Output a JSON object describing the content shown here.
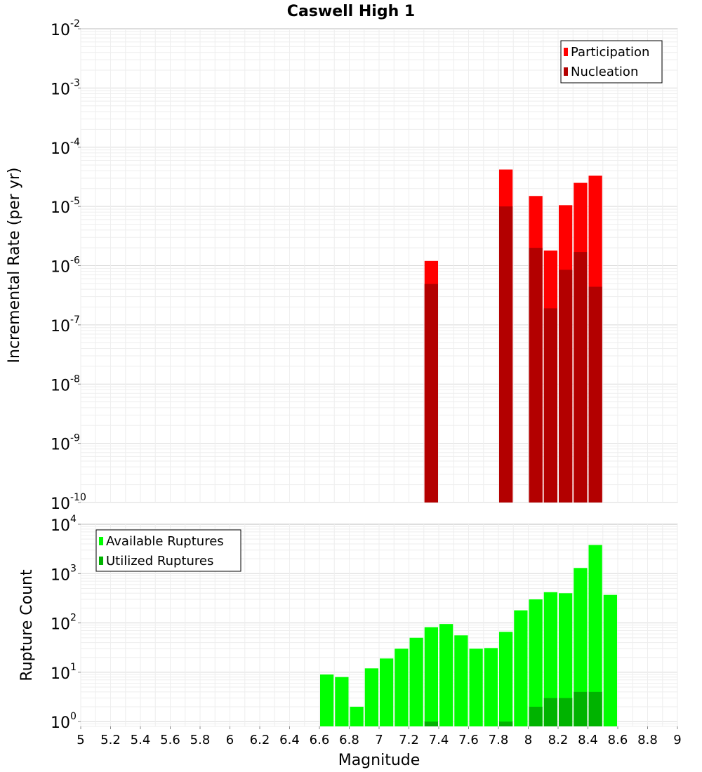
{
  "chart_data": [
    {
      "type": "bar",
      "title": "Caswell High 1",
      "xlabel": "",
      "ylabel": "Incremental Rate (per yr)",
      "yscale": "log",
      "ylim": [
        1e-10,
        0.01
      ],
      "xlim": [
        5,
        9
      ],
      "bin_width": 0.1,
      "legend_position": "top-right",
      "y_tick_exponents": [
        "-10",
        "-9",
        "-8",
        "-7",
        "-6",
        "-5",
        "-4",
        "-3",
        "-2"
      ],
      "series": [
        {
          "name": "Participation",
          "color": "#ff0000",
          "x": [
            7.35,
            7.85,
            8.05,
            8.15,
            8.25,
            8.35,
            8.45
          ],
          "values": [
            1.2e-06,
            4.2e-05,
            1.5e-05,
            1.8e-06,
            1.05e-05,
            2.5e-05,
            3.3e-05
          ]
        },
        {
          "name": "Nucleation",
          "color": "#b30000",
          "x": [
            7.35,
            7.85,
            8.05,
            8.15,
            8.25,
            8.35,
            8.45
          ],
          "values": [
            4.9e-07,
            1e-05,
            2e-06,
            1.9e-07,
            8.5e-07,
            1.7e-06,
            4.4e-07
          ]
        }
      ]
    },
    {
      "type": "bar",
      "title": "",
      "xlabel": "Magnitude",
      "ylabel": "Rupture Count",
      "yscale": "log",
      "ylim": [
        0.8,
        10000
      ],
      "xlim": [
        5,
        9
      ],
      "bin_width": 0.1,
      "legend_position": "top-left",
      "y_tick_exponents": [
        "0",
        "1",
        "2",
        "3",
        "4"
      ],
      "x_tick_labels": [
        "5",
        "5.2",
        "5.4",
        "5.6",
        "5.8",
        "6",
        "6.2",
        "6.4",
        "6.6",
        "6.8",
        "7",
        "7.2",
        "7.4",
        "7.6",
        "7.8",
        "8",
        "8.2",
        "8.4",
        "8.6",
        "8.8",
        "9"
      ],
      "series": [
        {
          "name": "Available Ruptures",
          "color": "#00ff00",
          "x": [
            6.65,
            6.75,
            6.85,
            6.95,
            7.05,
            7.15,
            7.25,
            7.35,
            7.45,
            7.55,
            7.65,
            7.75,
            7.85,
            7.95,
            8.05,
            8.15,
            8.25,
            8.35,
            8.45,
            8.55
          ],
          "values": [
            9,
            8,
            2,
            12,
            19,
            30,
            50,
            82,
            95,
            56,
            30,
            31,
            66,
            180,
            300,
            420,
            400,
            1300,
            3800,
            370
          ]
        },
        {
          "name": "Utilized Ruptures",
          "color": "#00b300",
          "x": [
            7.35,
            7.85,
            8.05,
            8.15,
            8.25,
            8.35,
            8.45
          ],
          "values": [
            1,
            1,
            2,
            3,
            3,
            4,
            4
          ]
        }
      ]
    }
  ]
}
